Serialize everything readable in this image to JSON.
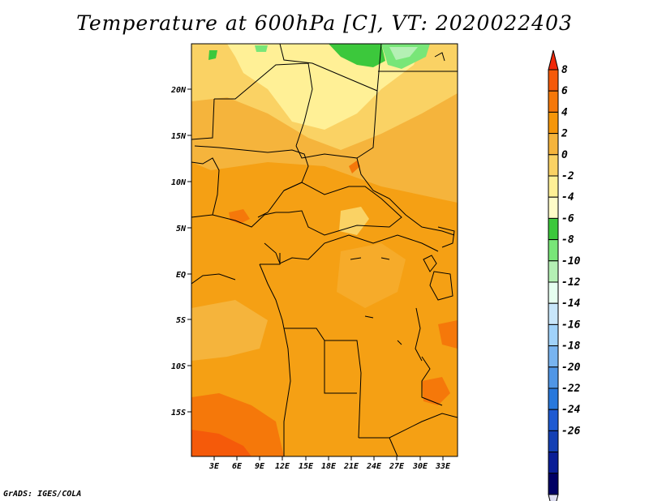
{
  "title": "Temperature at 600hPa [C], VT: 2020022403",
  "credit": "GrADS: IGES/COLA",
  "map": {
    "region": "Central Africa",
    "variable": "Temperature at 600hPa",
    "lat_labels": [
      "20N",
      "15N",
      "10N",
      "5N",
      "EQ",
      "5S",
      "10S",
      "15S"
    ],
    "lon_labels": [
      "3E",
      "6E",
      "9E",
      "12E",
      "15E",
      "18E",
      "21E",
      "24E",
      "27E",
      "30E",
      "33E"
    ]
  },
  "colorbar": {
    "labels": [
      "8",
      "6",
      "4",
      "2",
      "0",
      "-2",
      "-4",
      "-6",
      "-8",
      "-10",
      "-12",
      "-14",
      "-16",
      "-18",
      "-20",
      "-22",
      "-24",
      "-26"
    ],
    "colors": [
      "#f0280a",
      "#f55a0a",
      "#f5780a",
      "#f5960a",
      "#f5b43c",
      "#fad264",
      "#fff096",
      "#fffcc8",
      "#3cc83c",
      "#78e678",
      "#b4f0b4",
      "#e6fff0",
      "#c8e6fa",
      "#a0d2fa",
      "#78b4f0",
      "#5096e6",
      "#2878dc",
      "#1e5ad2",
      "#1440b4",
      "#0a1e96",
      "#000064",
      "#dcdcf0"
    ]
  }
}
